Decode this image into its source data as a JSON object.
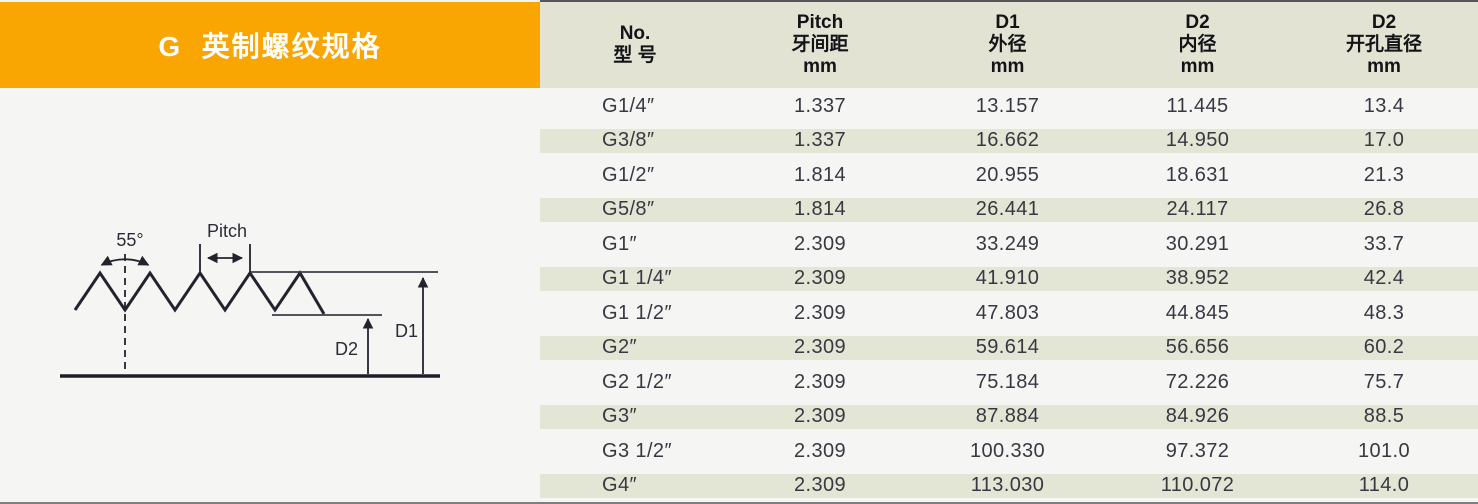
{
  "banner": {
    "title": "G  英制螺纹规格"
  },
  "diagram": {
    "angle_label": "55°",
    "pitch_label": "Pitch",
    "d1_label": "D1",
    "d2_label": "D2"
  },
  "table": {
    "columns": [
      {
        "id": "model",
        "lines": [
          "No.",
          "型 号"
        ]
      },
      {
        "id": "pitch",
        "lines": [
          "Pitch",
          "牙间距",
          "mm"
        ]
      },
      {
        "id": "d1_outer",
        "lines": [
          "D1",
          "外径",
          "mm"
        ]
      },
      {
        "id": "d2_inner",
        "lines": [
          "D2",
          "内径",
          "mm"
        ]
      },
      {
        "id": "d2_hole",
        "lines": [
          "D2",
          "开孔直径",
          "mm"
        ]
      }
    ],
    "rows": [
      [
        "G1/4″",
        "1.337",
        "13.157",
        "11.445",
        "13.4"
      ],
      [
        "G3/8″",
        "1.337",
        "16.662",
        "14.950",
        "17.0"
      ],
      [
        "G1/2″",
        "1.814",
        "20.955",
        "18.631",
        "21.3"
      ],
      [
        "G5/8″",
        "1.814",
        "26.441",
        "24.117",
        "26.8"
      ],
      [
        "G1″",
        "2.309",
        "33.249",
        "30.291",
        "33.7"
      ],
      [
        "G1 1/4″",
        "2.309",
        "41.910",
        "38.952",
        "42.4"
      ],
      [
        "G1 1/2″",
        "2.309",
        "47.803",
        "44.845",
        "48.3"
      ],
      [
        "G2″",
        "2.309",
        "59.614",
        "56.656",
        "60.2"
      ],
      [
        "G2 1/2″",
        "2.309",
        "75.184",
        "72.226",
        "75.7"
      ],
      [
        "G3″",
        "2.309",
        "87.884",
        "84.926",
        "88.5"
      ],
      [
        "G3 1/2″",
        "2.309",
        "100.330",
        "97.372",
        "101.0"
      ],
      [
        "G4″",
        "2.309",
        "113.030",
        "110.072",
        "114.0"
      ]
    ]
  },
  "colors": {
    "accent_orange": "#F9A602",
    "header_beige": "#E2E3D3",
    "row_stripe": "#E3E5D5",
    "page_background": "#F5F5F3"
  }
}
